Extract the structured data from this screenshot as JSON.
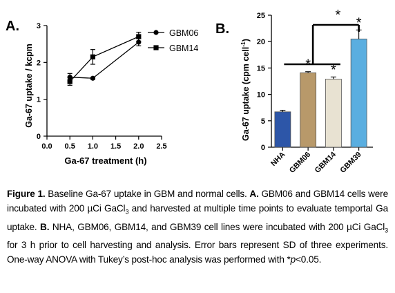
{
  "chart_data": [
    {
      "panel": "A.",
      "type": "line",
      "xlabel": "Ga-67 treatment (h)",
      "ylabel": "Ga-67 uptake / kcpm",
      "xlim": [
        0.0,
        2.5
      ],
      "ylim": [
        0,
        3
      ],
      "xticks": [
        "0.0",
        "0.5",
        "1.0",
        "1.5",
        "2.0",
        "2.5"
      ],
      "yticks": [
        "0",
        "1",
        "2",
        "3"
      ],
      "legend": "top-right",
      "series": [
        {
          "name": "GBM06",
          "marker": "circle",
          "x": [
            0.5,
            1.0,
            2.0
          ],
          "y": [
            1.6,
            1.57,
            2.55
          ],
          "err": [
            0.1,
            0.03,
            0.1
          ]
        },
        {
          "name": "GBM14",
          "marker": "square",
          "x": [
            0.5,
            1.0,
            2.0
          ],
          "y": [
            1.48,
            2.15,
            2.7
          ],
          "err": [
            0.1,
            0.2,
            0.12
          ]
        }
      ]
    },
    {
      "panel": "B.",
      "type": "bar",
      "ylabel_main": "Ga-67 uptake (cpm cell",
      "ylabel_sup": "-1",
      "ylabel_end": ")",
      "ylim": [
        0,
        25
      ],
      "yticks": [
        "0",
        "5",
        "10",
        "15",
        "20",
        "25"
      ],
      "categories": [
        "NHA",
        "GBM06",
        "GBM14",
        "GBM39"
      ],
      "values": [
        6.7,
        14.1,
        12.9,
        20.5
      ],
      "errors": [
        0.3,
        0.2,
        0.4,
        1.7
      ],
      "colors": [
        "#2d56a8",
        "#b8996a",
        "#e8e2d2",
        "#5aaee0"
      ],
      "significance": [
        "",
        "*",
        "*",
        "*"
      ],
      "bracket_star": "*",
      "top_star": "*"
    }
  ],
  "caption": {
    "label": "Figure 1.",
    "line1": " Baseline Ga-67 uptake in GBM and normal cells. ",
    "labelA": "A.",
    "line1b": " GBM06 and GBM14 cells",
    "line2a": "were incubated with 200 µCi GaCl",
    "line2sub": "3",
    "line2b": " and harvested at multiple time points to evaluate",
    "line3a": "temportal Ga uptake. ",
    "labelB": "B.",
    "line3b": " NHA, GBM06, GBM14, and GBM39 cell lines were incubated",
    "line4a": "with 200 µCi GaCl",
    "line4sub": "3",
    "line4b": " for 3 h prior to cell harvesting and analysis. Error bars represent SD",
    "line5": "of three experiments. One-way ANOVA with Tukey’s post-hoc analysis was performed",
    "line6a": "with *",
    "line6i": "p",
    "line6b": "<0.05."
  }
}
